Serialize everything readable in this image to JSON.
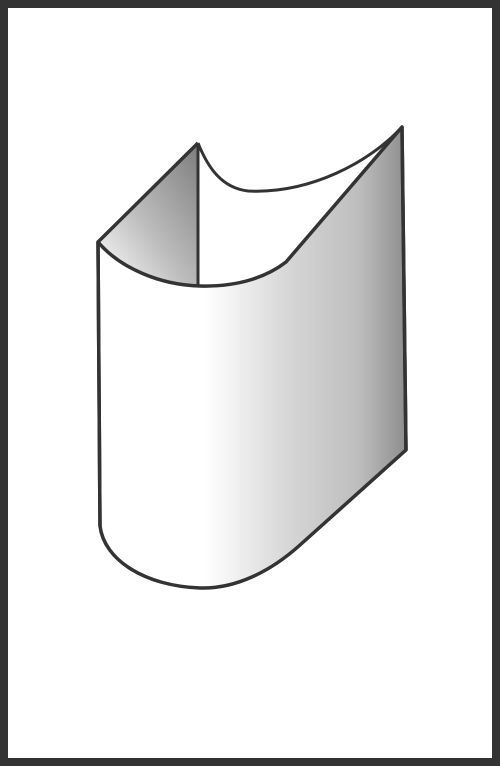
{
  "figure": {
    "subject": "curved-surface-solid",
    "colors": {
      "frame": "#333333",
      "background": "#ffffff",
      "outline": "#333333",
      "shade_light": "#ffffff",
      "shade_mid": "#d9d9d9",
      "shade_dark": "#8f8f8f"
    }
  }
}
